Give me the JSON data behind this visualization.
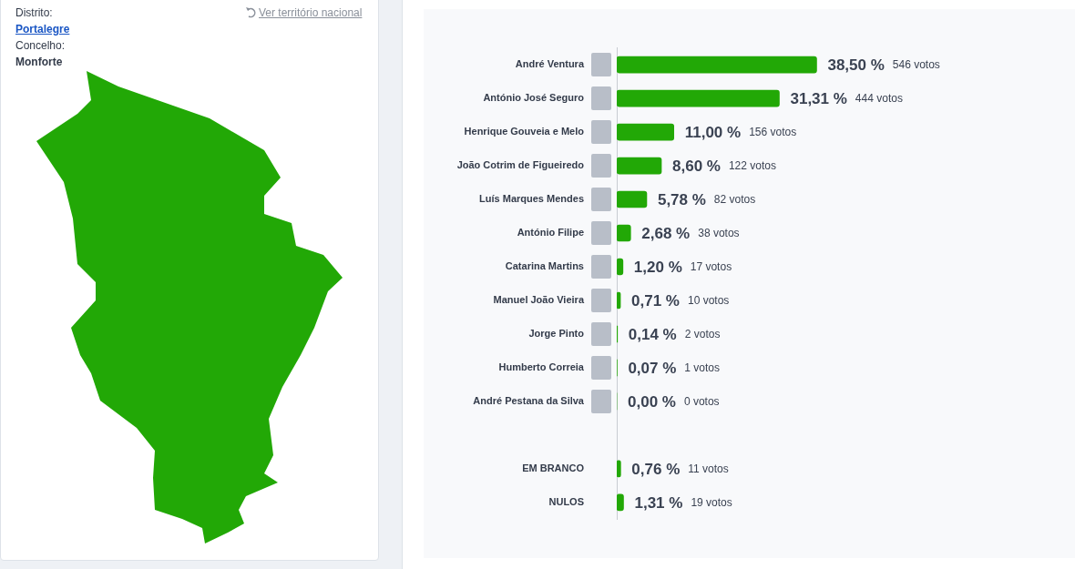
{
  "chart_data": {
    "type": "bar",
    "orientation": "horizontal",
    "categories": [
      "André Ventura",
      "António José Seguro",
      "Henrique Gouveia e Melo",
      "João Cotrim de Figueiredo",
      "Luís Marques Mendes",
      "António Filipe",
      "Catarina Martins",
      "Manuel João Vieira",
      "Jorge Pinto",
      "Humberto Correia",
      "André Pestana da Silva",
      null,
      "EM BRANCO",
      "NULOS"
    ],
    "values": [
      38.5,
      31.31,
      11.0,
      8.6,
      5.78,
      2.68,
      1.2,
      0.71,
      0.14,
      0.07,
      0.0,
      null,
      0.76,
      1.31
    ],
    "value_labels": [
      "38,50 %",
      "31,31 %",
      "11,00 %",
      "8,60 %",
      "5,78 %",
      "2,68 %",
      "1,20 %",
      "0,71 %",
      "0,14 %",
      "0,07 %",
      "0,00 %",
      null,
      "0,76 %",
      "1,31 %"
    ],
    "color": "#22a806",
    "tick_labels": "y",
    "grid": false,
    "legend": false,
    "annotations": [
      "Distrito:",
      "Portalegre",
      "Concelho:",
      "Monforte",
      "Ver território nacional",
      "546 votos",
      "444 votos",
      "156 votos",
      "122 votos",
      "82 votos",
      "38 votos",
      "17 votos",
      "10 votos",
      "2 votos",
      "1 votos",
      "0 votos",
      "11 votos",
      "19 votos"
    ]
  }
}
